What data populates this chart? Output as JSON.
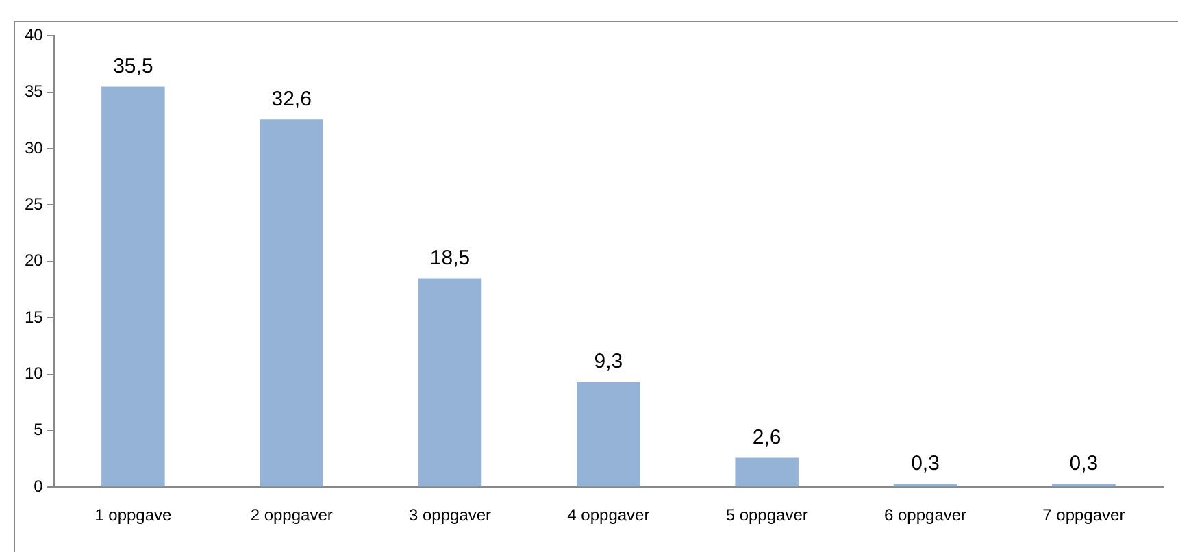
{
  "chart_data": {
    "type": "bar",
    "categories": [
      "1 oppgave",
      "2 oppgaver",
      "3 oppgaver",
      "4 oppgaver",
      "5 oppgaver",
      "6 oppgaver",
      "7 oppgaver"
    ],
    "values": [
      35.5,
      32.6,
      18.5,
      9.3,
      2.6,
      0.3,
      0.3
    ],
    "value_labels": [
      "35,5",
      "32,6",
      "18,5",
      "9,3",
      "2,6",
      "0,3",
      "0,3"
    ],
    "color": "#95b3d7",
    "ylim": [
      0,
      40
    ],
    "yticks": [
      0,
      5,
      10,
      15,
      20,
      25,
      30,
      35,
      40
    ],
    "grid": false,
    "legend": false
  }
}
